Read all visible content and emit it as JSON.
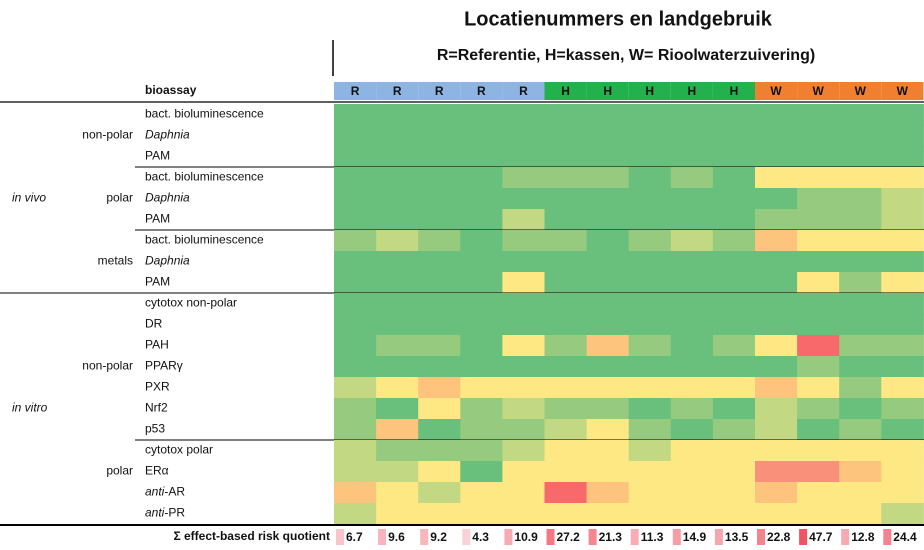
{
  "title": "Locatienummers en landgebruik",
  "subtitle": "R=Referentie, H=kassen, W= Rioolwaterzuivering)",
  "header_label": "bioassay",
  "palette": {
    "g": "#69bf7c",
    "l": "#96ca7e",
    "m": "#c2d882",
    "y": "#fde883",
    "o": "#fcc47c",
    "p": "#f9917a",
    "r": "#f8696b"
  },
  "columns": [
    {
      "label": "R",
      "color": "#8db4e2"
    },
    {
      "label": "R",
      "color": "#8db4e2"
    },
    {
      "label": "R",
      "color": "#8db4e2"
    },
    {
      "label": "R",
      "color": "#8db4e2"
    },
    {
      "label": "R",
      "color": "#8db4e2"
    },
    {
      "label": "H",
      "color": "#22b14c"
    },
    {
      "label": "H",
      "color": "#22b14c"
    },
    {
      "label": "H",
      "color": "#22b14c"
    },
    {
      "label": "H",
      "color": "#22b14c"
    },
    {
      "label": "H",
      "color": "#22b14c"
    },
    {
      "label": "W",
      "color": "#f07f2f"
    },
    {
      "label": "W",
      "color": "#f07f2f"
    },
    {
      "label": "W",
      "color": "#f07f2f"
    },
    {
      "label": "W",
      "color": "#f07f2f"
    }
  ],
  "groups": [
    {
      "label": "in vivo",
      "subgroups": [
        {
          "label": "non-polar",
          "rows": [
            {
              "label": "bact. bioluminescence",
              "cells": "gggggggggggggg"
            },
            {
              "label": "Daphnia",
              "italic": true,
              "cells": "gggggggggggggg"
            },
            {
              "label": "PAM",
              "cells": "gggggggggggggg"
            }
          ]
        },
        {
          "label": "polar",
          "rows": [
            {
              "label": "bact. bioluminescence",
              "cells": "gggglllglgyyyy"
            },
            {
              "label": "Daphnia",
              "italic": true,
              "cells": "gggggggggggllm"
            },
            {
              "label": "PAM",
              "cells": "ggggmggggglllm"
            }
          ]
        },
        {
          "label": "metals",
          "rows": [
            {
              "label": "bact. bioluminescence",
              "cells": "lmlgllglmloyyy"
            },
            {
              "label": "Daphnia",
              "italic": true,
              "cells": "gggggggggggggg"
            },
            {
              "label": "PAM",
              "cells": "ggggyggggggyly"
            }
          ]
        }
      ]
    },
    {
      "label": "in vitro",
      "subgroups": [
        {
          "label": "non-polar",
          "rows": [
            {
              "label": "cytotox non-polar",
              "cells": "gggggggggggggg"
            },
            {
              "label": "DR",
              "cells": "gggggggggggggg"
            },
            {
              "label": "PAH",
              "cells": "gllgylolglyrll"
            },
            {
              "label": "PPARγ",
              "cells": "ggggggggggglgg"
            },
            {
              "label": "PXR",
              "cells": "myoyyyyyyyoyly"
            },
            {
              "label": "Nrf2",
              "cells": "lgylmllglgmlgl"
            },
            {
              "label": "p53",
              "cells": "logllmylglmglg"
            }
          ]
        },
        {
          "label": "polar",
          "rows": [
            {
              "label": "cytotox polar",
              "cells": "mlllmyymyyyyyy"
            },
            {
              "label": "ERα",
              "cells": "mmygyyyyyyppoy"
            },
            {
              "prefix": "anti",
              "label": "-AR",
              "cells": "oymyyroyyyoyyy"
            },
            {
              "prefix": "anti",
              "label": "-PR",
              "cells": "myyyyyyyyyyyym"
            }
          ]
        }
      ]
    }
  ],
  "footer": {
    "label": "Σ effect-based risk quotient",
    "values": [
      6.7,
      9.6,
      9.2,
      4.3,
      10.9,
      27.2,
      21.3,
      11.3,
      14.9,
      13.5,
      22.8,
      47.7,
      12.8,
      24.4
    ],
    "colors": [
      "#f9c4ca",
      "#f8b4bc",
      "#f8b6bd",
      "#fad2d6",
      "#f7aab2",
      "#f37883",
      "#f48792",
      "#f7adb5",
      "#f69ea7",
      "#f7a6ae",
      "#f4838e",
      "#f15563",
      "#f7aab2",
      "#f48390"
    ]
  }
}
